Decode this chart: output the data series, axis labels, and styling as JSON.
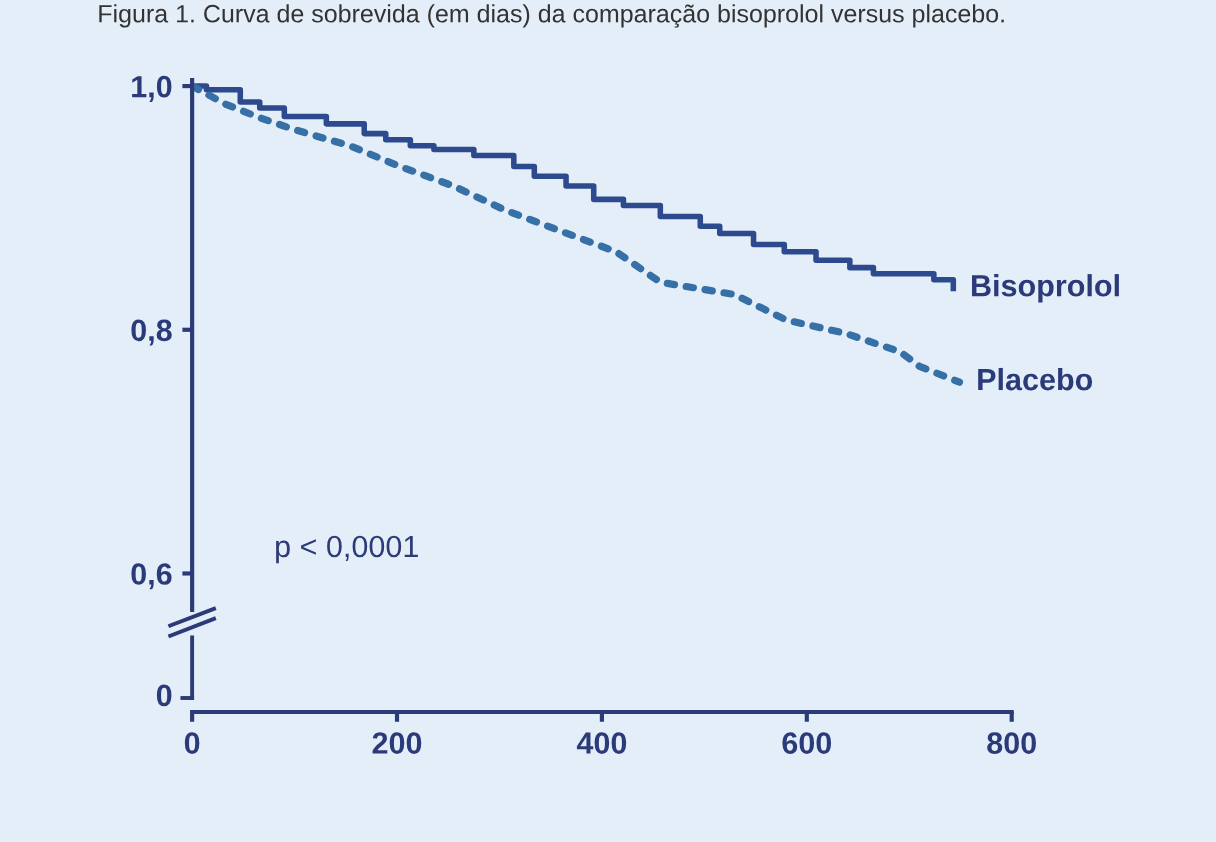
{
  "chart_data": {
    "type": "line",
    "title": "Figura 1. Curva de sobrevida (em dias) da comparação bisoprolol versus placebo.",
    "xlim": [
      0,
      800
    ],
    "xticks": [
      0,
      200,
      400,
      600,
      800
    ],
    "ylim": [
      0.57,
      1.005
    ],
    "yticks": [
      {
        "value": 1.0,
        "label": "1,0"
      },
      {
        "value": 0.8,
        "label": "0,8"
      },
      {
        "value": 0.6,
        "label": "0,6"
      }
    ],
    "annotations": [
      "p < 0,0001",
      "0"
    ],
    "series": [
      {
        "name": "Bisoprolol",
        "type": "step",
        "color": "#2e4a8e",
        "line_style": "solid",
        "x": [
          0,
          14,
          47,
          66,
          90,
          131,
          168,
          189,
          213,
          236,
          275,
          314,
          334,
          365,
          392,
          421,
          457,
          496,
          515,
          548,
          578,
          609,
          642,
          665,
          724,
          743
        ],
        "values": [
          1.0,
          0.997,
          0.987,
          0.982,
          0.975,
          0.969,
          0.961,
          0.956,
          0.951,
          0.948,
          0.943,
          0.934,
          0.926,
          0.918,
          0.907,
          0.902,
          0.893,
          0.885,
          0.879,
          0.87,
          0.864,
          0.857,
          0.851,
          0.846,
          0.841,
          0.834
        ]
      },
      {
        "name": "Placebo",
        "color": "#3670a6",
        "line_style": "dotted",
        "x": [
          0,
          33,
          66,
          101,
          154,
          203,
          255,
          306,
          363,
          414,
          457,
          529,
          580,
          638,
          691,
          710,
          749
        ],
        "values": [
          1.0,
          0.985,
          0.974,
          0.964,
          0.951,
          0.934,
          0.918,
          0.898,
          0.88,
          0.864,
          0.839,
          0.829,
          0.808,
          0.797,
          0.782,
          0.77,
          0.757
        ]
      }
    ]
  }
}
